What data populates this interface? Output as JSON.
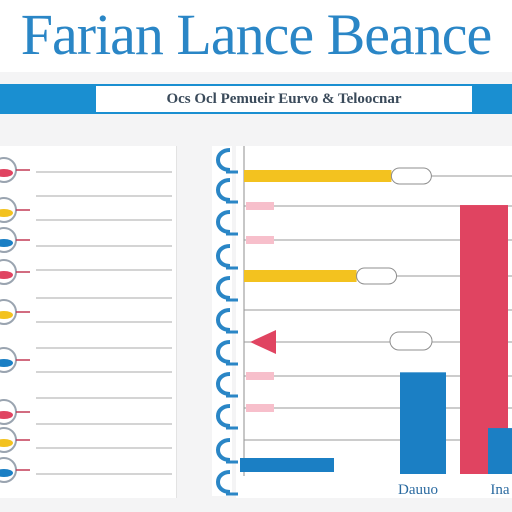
{
  "header": {
    "title": "Farian Lance Beance",
    "subtitle": "Ocs Ocl Pemueir Eurvo & Teloocnar"
  },
  "colors": {
    "header_band": "#1a8fd1",
    "title": "#2a86c6",
    "yellow": "#f3c21f",
    "red": "#e04461",
    "blue": "#1b7fc4",
    "pink": "#f7bfcb",
    "grid": "#9a9a9a"
  },
  "left_panel": {
    "icons": [
      "target-icon",
      "toggle-icon",
      "stack-icon",
      "flag-icon",
      "pill-icon",
      "gauge-icon",
      "bubble-icon",
      "bubble-icon",
      "ring-icon"
    ]
  },
  "chart_data": {
    "type": "bar",
    "title": "",
    "xlabel": "",
    "ylabel": "",
    "x_ticks": [
      "",
      "",
      "Dauuo",
      "Ina"
    ],
    "horizontal_bars": [
      {
        "row": 0,
        "color": "yellow",
        "value": 0.55
      },
      {
        "row": 3,
        "color": "yellow",
        "value": 0.42
      }
    ],
    "vertical_bars": [
      {
        "color": "blue",
        "value": 0.31
      },
      {
        "color": "red",
        "value": 0.82
      },
      {
        "color": "blue",
        "value": 0.14
      }
    ]
  }
}
